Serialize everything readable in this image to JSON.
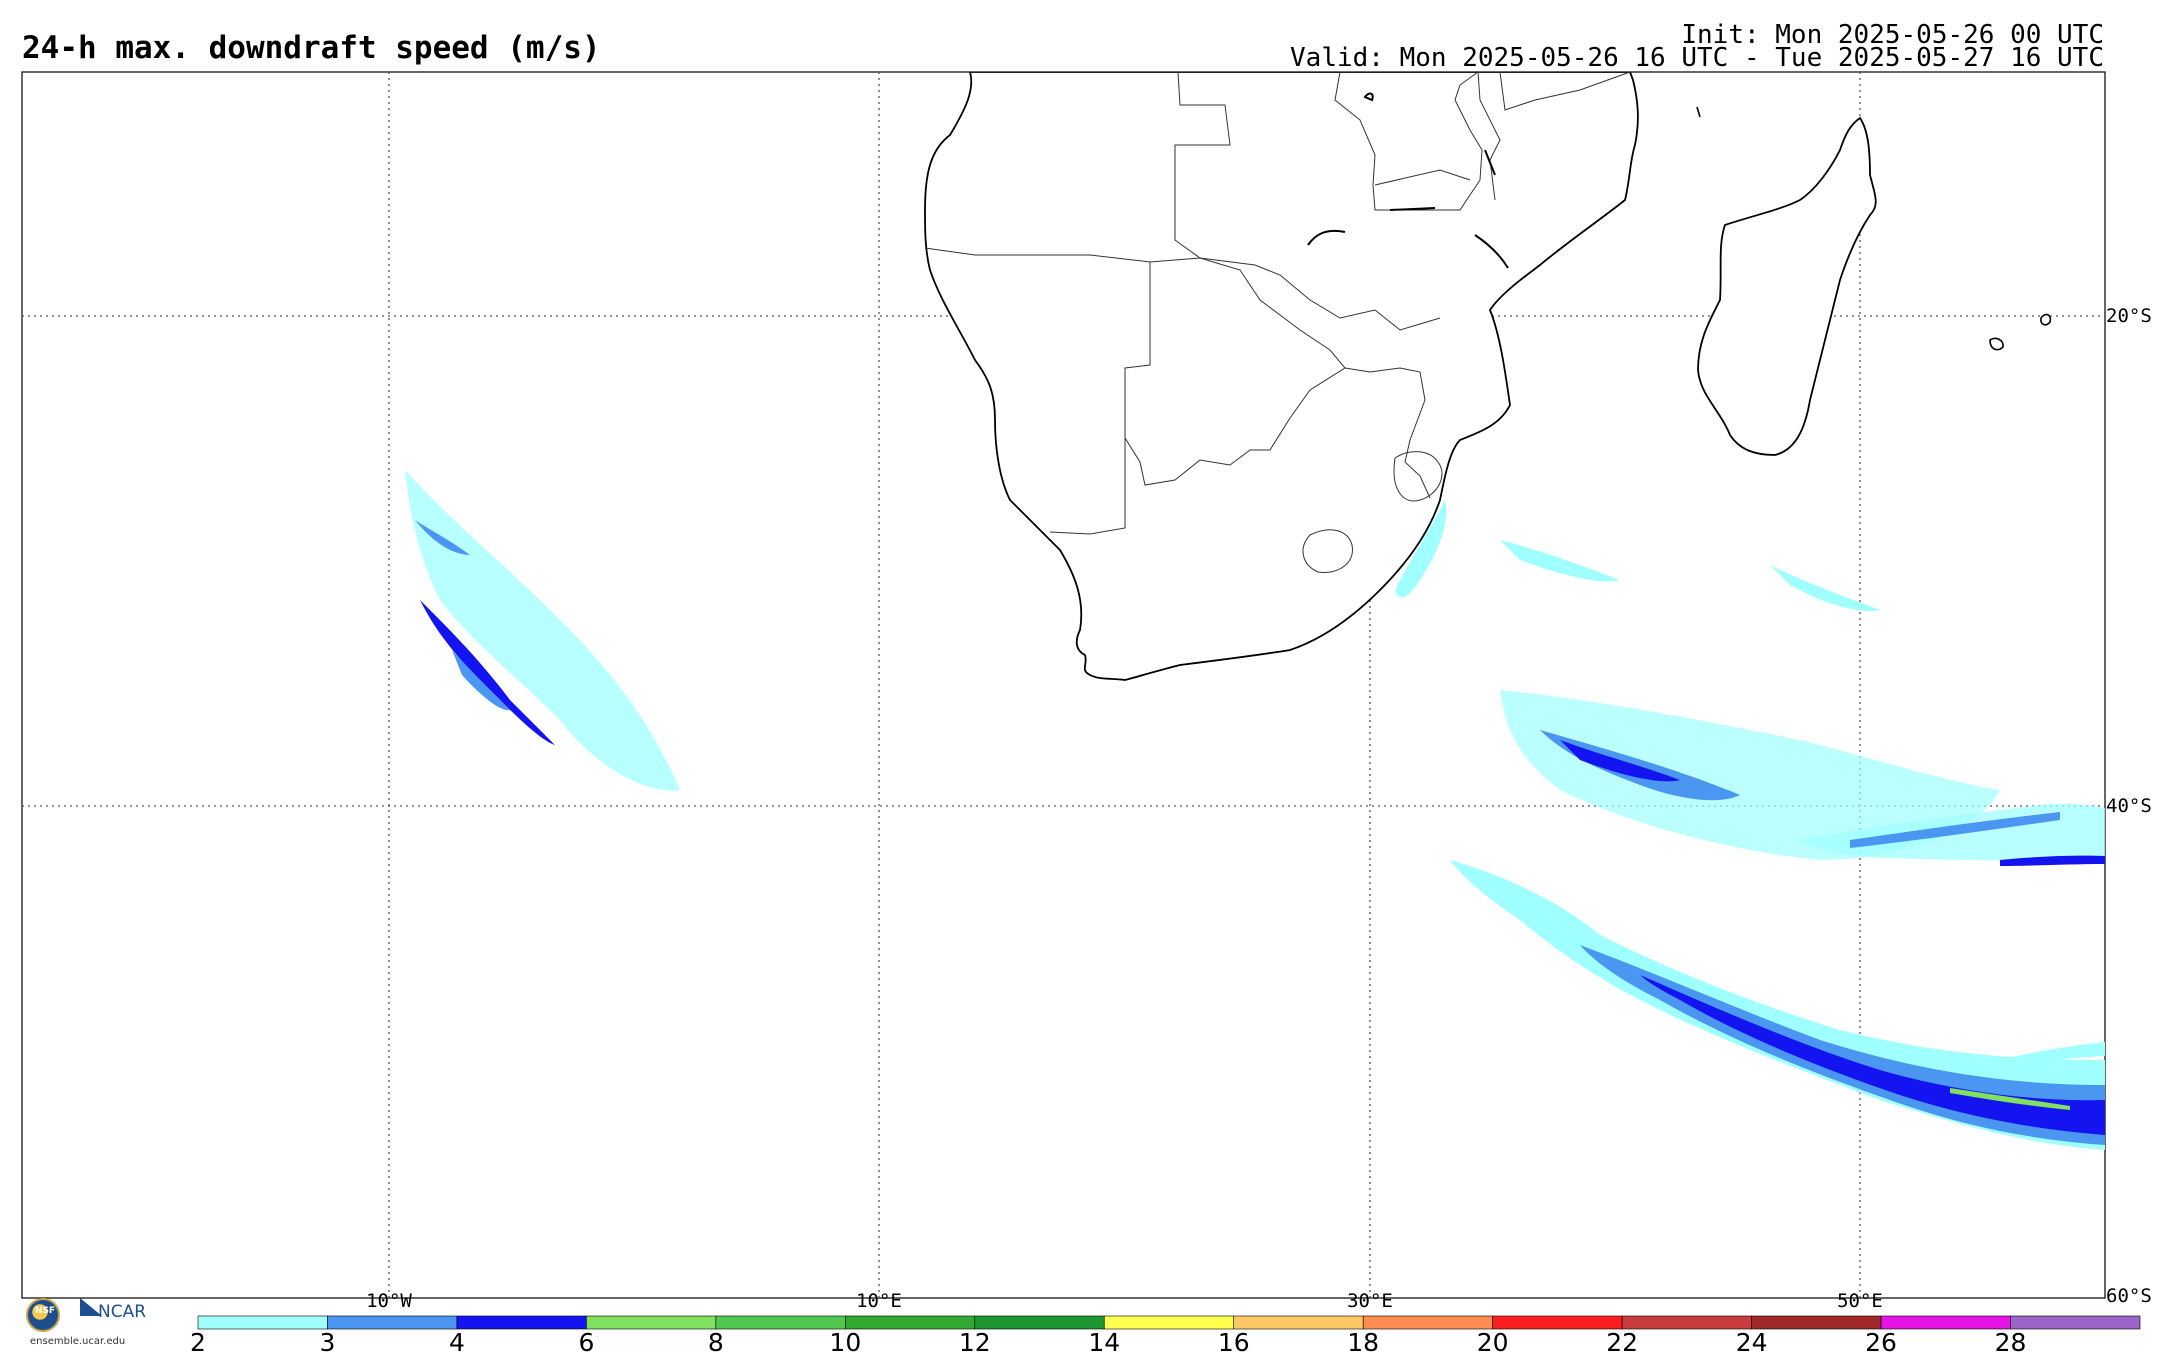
{
  "header": {
    "title": "24-h max. downdraft speed (m/s)",
    "init": "Init: Mon 2025-05-26 00 UTC",
    "valid": "Valid: Mon 2025-05-26 16 UTC - Tue 2025-05-27 16 UTC"
  },
  "map": {
    "lon_labels": [
      "10°W",
      "10°E",
      "30°E",
      "50°E"
    ],
    "lat_labels": [
      "20°S",
      "40°S",
      "60°S"
    ],
    "land_color": "#ffffff",
    "border_color": "#000000"
  },
  "colorbar": {
    "ticks": [
      "2",
      "3",
      "4",
      "6",
      "8",
      "10",
      "12",
      "14",
      "16",
      "18",
      "20",
      "22",
      "24",
      "26",
      "28"
    ],
    "colors": [
      "#a0ffff",
      "#4b96f0",
      "#1414f0",
      "#80e060",
      "#50c850",
      "#32aa32",
      "#1e9632",
      "#ffff50",
      "#ffc864",
      "#ff8c50",
      "#fa1e1e",
      "#c83c3c",
      "#a02828",
      "#e614e6",
      "#9b64c8"
    ]
  },
  "logos": {
    "nsf": "NSF",
    "ncar": "NCAR",
    "site": "ensemble.ucar.edu"
  }
}
